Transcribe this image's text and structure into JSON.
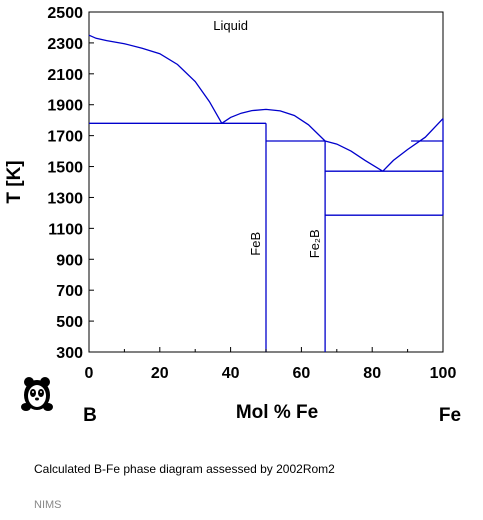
{
  "chart_data": {
    "type": "line",
    "title": "",
    "xlabel": "Mol % Fe",
    "ylabel": "T [K]",
    "xlim": [
      0,
      100
    ],
    "ylim": [
      300,
      2500
    ],
    "x_ticks": [
      0,
      20,
      40,
      60,
      80,
      100
    ],
    "y_ticks": [
      300,
      500,
      700,
      900,
      1100,
      1300,
      1500,
      1700,
      1900,
      2100,
      2300,
      2500
    ],
    "x_left_element": "B",
    "x_right_element": "Fe",
    "grid": false,
    "line_color": "#0000cc",
    "series": [
      {
        "points": [
          [
            0,
            2350
          ],
          [
            2,
            2330
          ],
          [
            5,
            2315
          ],
          [
            10,
            2295
          ],
          [
            15,
            2265
          ],
          [
            20,
            2230
          ],
          [
            25,
            2160
          ],
          [
            30,
            2050
          ],
          [
            34,
            1920
          ],
          [
            37.5,
            1780
          ]
        ]
      },
      {
        "points": [
          [
            37.5,
            1780
          ],
          [
            40,
            1818
          ],
          [
            43,
            1845
          ],
          [
            46,
            1862
          ],
          [
            50,
            1870
          ],
          [
            54,
            1860
          ],
          [
            58,
            1830
          ],
          [
            62,
            1770
          ],
          [
            66.7,
            1665
          ]
        ]
      },
      {
        "points": [
          [
            66.7,
            1665
          ],
          [
            70,
            1645
          ],
          [
            74,
            1600
          ],
          [
            78,
            1540
          ],
          [
            83,
            1470
          ]
        ]
      },
      {
        "points": [
          [
            83,
            1470
          ],
          [
            86,
            1540
          ],
          [
            90,
            1610
          ],
          [
            95,
            1690
          ],
          [
            100,
            1810
          ]
        ]
      },
      {
        "points": [
          [
            0,
            1780
          ],
          [
            50,
            1780
          ]
        ]
      },
      {
        "points": [
          [
            50,
            1665
          ],
          [
            66.7,
            1665
          ]
        ]
      },
      {
        "points": [
          [
            66.7,
            1470
          ],
          [
            100,
            1470
          ]
        ]
      },
      {
        "points": [
          [
            66.7,
            1185
          ],
          [
            100,
            1185
          ]
        ]
      },
      {
        "points": [
          [
            91,
            1665
          ],
          [
            100,
            1665
          ]
        ]
      },
      {
        "points": [
          [
            50,
            300
          ],
          [
            50,
            1780
          ]
        ]
      },
      {
        "points": [
          [
            66.7,
            300
          ],
          [
            66.7,
            1665
          ]
        ]
      },
      {
        "points": [
          [
            100,
            1185
          ],
          [
            100,
            1810
          ]
        ]
      }
    ],
    "annotations": [
      {
        "text": "Liquid",
        "x": 40,
        "y": 2385,
        "rotation": 0
      },
      {
        "text": "FeB",
        "x": 48.3,
        "y": 1000,
        "rotation": -90
      },
      {
        "text": "Fe₂B",
        "x": 65,
        "y": 1000,
        "rotation": -90
      }
    ]
  },
  "caption": "Calculated B-Fe phase diagram assessed by 2002Rom2",
  "source": "NIMS",
  "logo": {
    "icon": "panda-logo-icon"
  }
}
